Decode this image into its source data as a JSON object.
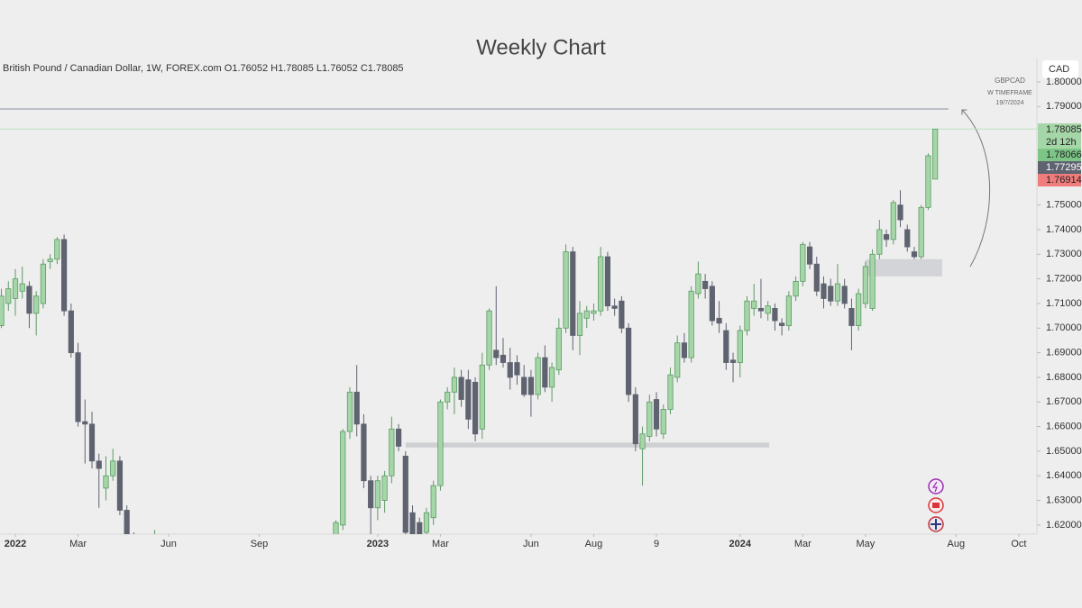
{
  "chart_data": {
    "type": "candlestick",
    "title": "Weekly Chart",
    "header": "British Pound / Canadian Dollar, 1W, FOREX.com  O1.76052  H1.78085  L1.76052  C1.78085",
    "currency": "CAD",
    "annotation": [
      "GBPCAD",
      "W TIMEFRAME",
      "19/7/2024"
    ],
    "up_color": "#a5d6a7",
    "up_edge": "#5c9a64",
    "down_color": "#5f6370",
    "x": [
      -2,
      -1,
      0,
      1,
      2,
      3,
      4,
      5,
      6,
      7,
      8,
      9,
      10,
      11,
      12,
      13,
      14,
      15,
      16,
      17,
      20,
      46,
      47,
      48,
      49,
      50,
      51,
      52,
      53,
      54,
      55,
      56,
      57,
      58,
      59,
      60,
      61,
      62,
      63,
      64,
      65,
      66,
      67,
      68,
      69,
      70,
      71,
      72,
      73,
      74,
      75,
      76,
      77,
      78,
      79,
      80,
      81,
      82,
      83,
      84,
      85,
      86,
      87,
      88,
      89,
      90,
      91,
      92,
      93,
      94,
      95,
      96,
      97,
      98,
      99,
      100,
      101,
      102,
      103,
      104,
      105,
      106,
      107,
      108,
      109,
      110,
      111,
      112,
      113,
      114,
      115,
      116,
      117,
      118,
      119,
      120,
      121,
      122,
      123,
      124,
      125,
      126,
      127,
      128,
      129,
      130,
      131,
      132
    ],
    "open": [
      1.701,
      1.71,
      1.712,
      1.715,
      1.717,
      1.706,
      1.71,
      1.727,
      1.728,
      1.736,
      1.707,
      1.69,
      1.662,
      1.661,
      1.646,
      1.635,
      1.64,
      1.646,
      1.626,
      1.614,
      1.605,
      1.61,
      1.62,
      1.658,
      1.674,
      1.661,
      1.638,
      1.627,
      1.63,
      1.64,
      1.659,
      1.648,
      1.625,
      1.621,
      1.617,
      1.623,
      1.636,
      1.67,
      1.674,
      1.68,
      1.679,
      1.678,
      1.659,
      1.685,
      1.691,
      1.689,
      1.686,
      1.686,
      1.68,
      1.68,
      1.673,
      1.688,
      1.676,
      1.683,
      1.7,
      1.731,
      1.697,
      1.704,
      1.706,
      1.707,
      1.729,
      1.709,
      1.711,
      1.7,
      1.673,
      1.651,
      1.656,
      1.671,
      1.657,
      1.667,
      1.68,
      1.694,
      1.688,
      1.714,
      1.719,
      1.717,
      1.704,
      1.699,
      1.687,
      1.686,
      1.699,
      1.708,
      1.708,
      1.706,
      1.708,
      1.702,
      1.701,
      1.713,
      1.719,
      1.733,
      1.726,
      1.718,
      1.717,
      1.711,
      1.717,
      1.708,
      1.701,
      1.71,
      1.708,
      1.73,
      1.738,
      1.736,
      1.75,
      1.74,
      1.731,
      1.729,
      1.749,
      1.76052
    ],
    "high": [
      1.716,
      1.719,
      1.724,
      1.725,
      1.719,
      1.715,
      1.728,
      1.73,
      1.737,
      1.738,
      1.71,
      1.694,
      1.671,
      1.666,
      1.649,
      1.648,
      1.651,
      1.648,
      1.628,
      1.617,
      1.618,
      1.622,
      1.659,
      1.676,
      1.685,
      1.665,
      1.64,
      1.64,
      1.642,
      1.664,
      1.661,
      1.65,
      1.628,
      1.623,
      1.627,
      1.638,
      1.671,
      1.676,
      1.684,
      1.683,
      1.683,
      1.68,
      1.69,
      1.708,
      1.717,
      1.696,
      1.692,
      1.689,
      1.685,
      1.683,
      1.69,
      1.693,
      1.686,
      1.704,
      1.734,
      1.733,
      1.711,
      1.709,
      1.71,
      1.733,
      1.731,
      1.712,
      1.713,
      1.702,
      1.676,
      1.66,
      1.673,
      1.674,
      1.669,
      1.684,
      1.697,
      1.698,
      1.717,
      1.727,
      1.722,
      1.719,
      1.711,
      1.702,
      1.69,
      1.701,
      1.713,
      1.718,
      1.72,
      1.711,
      1.71,
      1.704,
      1.715,
      1.721,
      1.735,
      1.735,
      1.729,
      1.721,
      1.72,
      1.726,
      1.72,
      1.712,
      1.716,
      1.727,
      1.732,
      1.744,
      1.74,
      1.752,
      1.756,
      1.742,
      1.733,
      1.75,
      1.771,
      1.78085
    ],
    "low": [
      1.7,
      1.707,
      1.705,
      1.712,
      1.7,
      1.697,
      1.708,
      1.724,
      1.726,
      1.705,
      1.688,
      1.66,
      1.645,
      1.643,
      1.627,
      1.63,
      1.638,
      1.624,
      1.612,
      1.6,
      1.598,
      1.605,
      1.618,
      1.655,
      1.656,
      1.635,
      1.613,
      1.622,
      1.625,
      1.637,
      1.65,
      1.613,
      1.61,
      1.612,
      1.614,
      1.62,
      1.634,
      1.667,
      1.665,
      1.668,
      1.659,
      1.654,
      1.655,
      1.683,
      1.685,
      1.684,
      1.675,
      1.677,
      1.672,
      1.664,
      1.671,
      1.674,
      1.67,
      1.681,
      1.698,
      1.691,
      1.689,
      1.7,
      1.703,
      1.705,
      1.707,
      1.705,
      1.698,
      1.67,
      1.65,
      1.636,
      1.654,
      1.656,
      1.655,
      1.665,
      1.678,
      1.686,
      1.686,
      1.712,
      1.712,
      1.701,
      1.698,
      1.683,
      1.678,
      1.68,
      1.697,
      1.705,
      1.704,
      1.703,
      1.699,
      1.697,
      1.699,
      1.711,
      1.717,
      1.724,
      1.713,
      1.708,
      1.709,
      1.709,
      1.708,
      1.691,
      1.699,
      1.708,
      1.707,
      1.728,
      1.733,
      1.734,
      1.741,
      1.731,
      1.728,
      1.728,
      1.748,
      1.76052
    ],
    "close": [
      1.713,
      1.716,
      1.72,
      1.718,
      1.706,
      1.713,
      1.726,
      1.728,
      1.736,
      1.707,
      1.69,
      1.662,
      1.661,
      1.646,
      1.643,
      1.64,
      1.646,
      1.626,
      1.615,
      1.605,
      1.61,
      1.621,
      1.658,
      1.674,
      1.661,
      1.638,
      1.627,
      1.638,
      1.64,
      1.659,
      1.652,
      1.617,
      1.615,
      1.615,
      1.625,
      1.636,
      1.67,
      1.674,
      1.68,
      1.671,
      1.663,
      1.657,
      1.685,
      1.707,
      1.688,
      1.686,
      1.68,
      1.681,
      1.673,
      1.673,
      1.688,
      1.676,
      1.684,
      1.7,
      1.731,
      1.697,
      1.706,
      1.707,
      1.707,
      1.729,
      1.709,
      1.708,
      1.7,
      1.673,
      1.653,
      1.657,
      1.67,
      1.659,
      1.667,
      1.681,
      1.694,
      1.688,
      1.715,
      1.722,
      1.716,
      1.703,
      1.702,
      1.686,
      1.686,
      1.699,
      1.711,
      1.711,
      1.707,
      1.709,
      1.703,
      1.701,
      1.713,
      1.719,
      1.734,
      1.726,
      1.715,
      1.712,
      1.711,
      1.718,
      1.71,
      1.701,
      1.714,
      1.725,
      1.73,
      1.74,
      1.736,
      1.751,
      1.744,
      1.733,
      1.729,
      1.749,
      1.77,
      1.78085
    ],
    "xlim": [
      -2.2,
      146.6
    ],
    "xticks": [
      {
        "value": 0,
        "label": "2022",
        "bold": true
      },
      {
        "value": 9,
        "label": "Mar"
      },
      {
        "value": 22,
        "label": "Jun"
      },
      {
        "value": 35,
        "label": "Sep"
      },
      {
        "value": 52,
        "label": "2023",
        "bold": true
      },
      {
        "value": 61,
        "label": "Mar"
      },
      {
        "value": 74,
        "label": "Jun"
      },
      {
        "value": 83,
        "label": "Aug"
      },
      {
        "value": 92,
        "label": "9"
      },
      {
        "value": 104,
        "label": "2024",
        "bold": true
      },
      {
        "value": 113,
        "label": "Mar"
      },
      {
        "value": 122,
        "label": "May"
      },
      {
        "value": 135,
        "label": "Aug"
      },
      {
        "value": 144,
        "label": "Oct"
      }
    ],
    "ylim": [
      1.6163,
      1.8095
    ],
    "yticks": [
      {
        "value": 1.62,
        "label": "1.62000"
      },
      {
        "value": 1.63,
        "label": "1.63000"
      },
      {
        "value": 1.64,
        "label": "1.64000"
      },
      {
        "value": 1.65,
        "label": "1.65000"
      },
      {
        "value": 1.66,
        "label": "1.66000"
      },
      {
        "value": 1.67,
        "label": "1.67000"
      },
      {
        "value": 1.68,
        "label": "1.68000"
      },
      {
        "value": 1.69,
        "label": "1.69000"
      },
      {
        "value": 1.7,
        "label": "1.70000"
      },
      {
        "value": 1.71,
        "label": "1.71000"
      },
      {
        "value": 1.72,
        "label": "1.72000"
      },
      {
        "value": 1.73,
        "label": "1.73000"
      },
      {
        "value": 1.74,
        "label": "1.74000"
      },
      {
        "value": 1.75,
        "label": "1.75000"
      },
      {
        "value": 1.79,
        "label": "1.79000"
      },
      {
        "value": 1.8,
        "label": "1.80000"
      }
    ],
    "price_labels": [
      {
        "text": 1.78085,
        "color": "#a5d6a7"
      },
      {
        "text": "2d 12h",
        "color": "#a5d6a7"
      },
      {
        "text": 1.78066,
        "color": "#7cc587"
      },
      {
        "text": 1.77295,
        "color": "#5f6370"
      },
      {
        "text": 1.76914,
        "color": "#f07c7c"
      }
    ],
    "hline": {
      "value": 1.789,
      "x_end": 133.9,
      "color": "#8a8fa3"
    },
    "zones": [
      {
        "x": [
          56.0,
          108.2
        ],
        "y": [
          1.6515,
          1.6535
        ],
        "color": "#cfd0d4"
      },
      {
        "x": [
          122.0,
          133.0
        ],
        "y": [
          1.721,
          1.728
        ],
        "color": "#d3d4d7"
      }
    ]
  }
}
